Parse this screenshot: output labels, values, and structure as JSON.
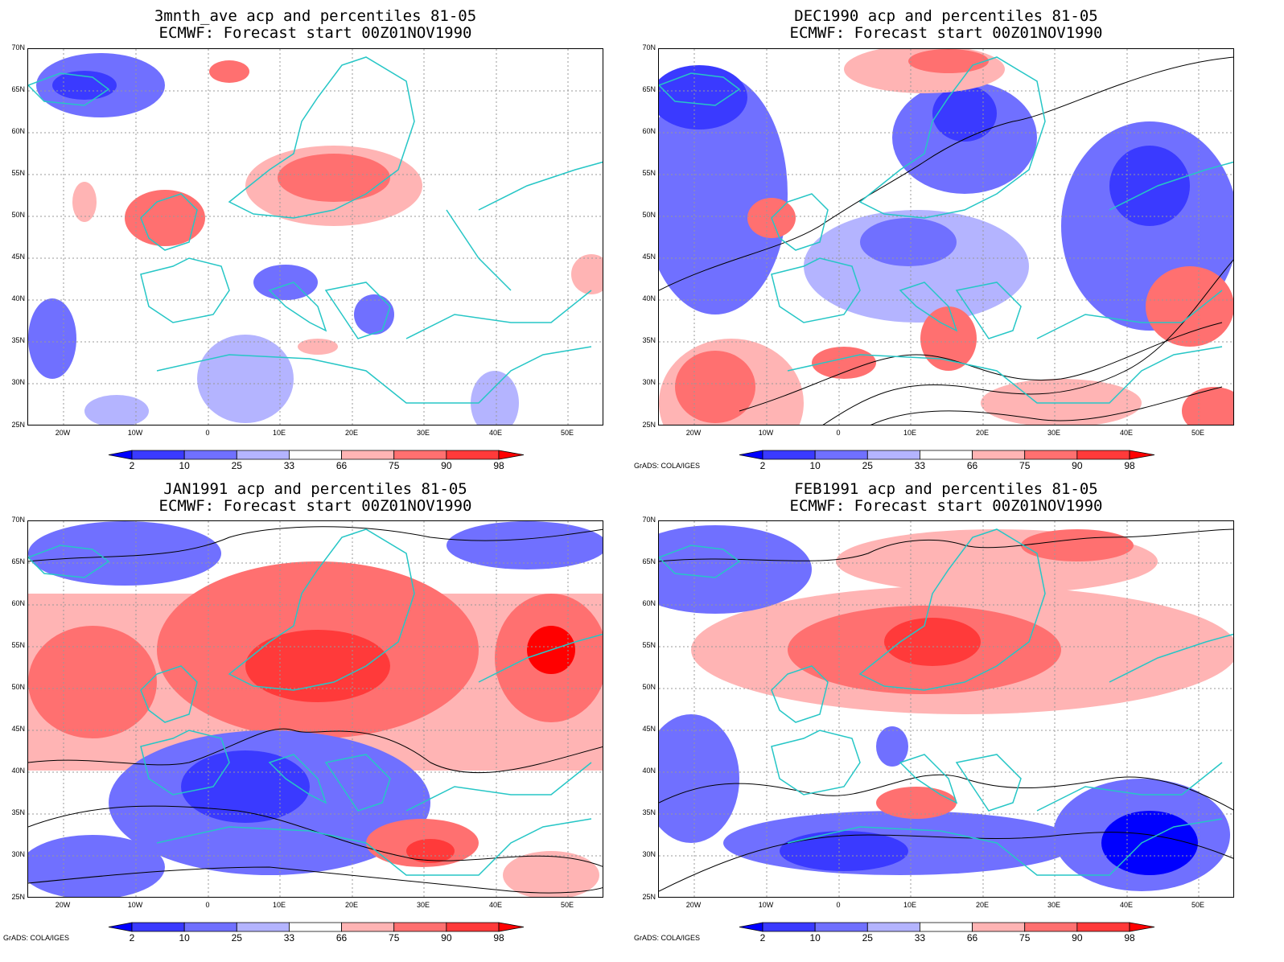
{
  "panels": [
    {
      "title1": "3mnth_ave acp and percentiles 81-05",
      "title2": "ECMWF: Forecast start 00Z01NOV1990",
      "credit": ""
    },
    {
      "title1": "DEC1990 acp and percentiles 81-05",
      "title2": "ECMWF: Forecast start 00Z01NOV1990",
      "credit": "GrADS: COLA/IGES"
    },
    {
      "title1": "JAN1991 acp and percentiles 81-05",
      "title2": "ECMWF: Forecast start 00Z01NOV1990",
      "credit": "GrADS: COLA/IGES"
    },
    {
      "title1": "FEB1991 acp and percentiles 81-05",
      "title2": "ECMWF: Forecast start 00Z01NOV1990",
      "credit": "GrADS: COLA/IGES"
    }
  ],
  "lat_labels": [
    "70N",
    "65N",
    "60N",
    "55N",
    "50N",
    "45N",
    "40N",
    "35N",
    "30N",
    "25N"
  ],
  "lon_labels": [
    "20W",
    "10W",
    "0",
    "10E",
    "20E",
    "30E",
    "40E",
    "50E"
  ],
  "colorbar": {
    "labels": [
      "2",
      "10",
      "25",
      "33",
      "66",
      "75",
      "90",
      "98"
    ],
    "colors": [
      "#0000ff",
      "#3a3aff",
      "#7070ff",
      "#b4b4ff",
      "#ffffff",
      "#ffb4b4",
      "#ff7070",
      "#ff3a3a",
      "#ff0000"
    ]
  },
  "colors": {
    "coast": "#26c6c6",
    "contour": "#000000",
    "grid": "#999999"
  }
}
